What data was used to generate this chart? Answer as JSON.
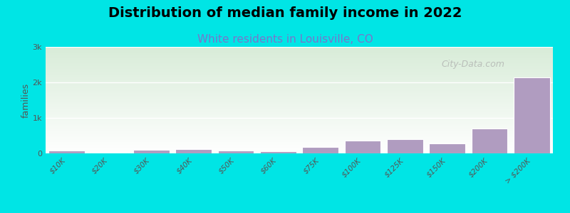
{
  "title": "Distribution of median family income in 2022",
  "subtitle": "White residents in Louisville, CO",
  "xlabel": "",
  "ylabel": "families",
  "categories": [
    "$10K",
    "$20K",
    "$30K",
    "$40K",
    "$50K",
    "$60K",
    "$75K",
    "$100K",
    "$125K",
    "$150K",
    "$200K",
    "> $200K"
  ],
  "values": [
    75,
    20,
    100,
    120,
    80,
    65,
    175,
    360,
    410,
    290,
    700,
    2150
  ],
  "bar_color": "#b09cc0",
  "bar_edge_color": "#ffffff",
  "background_color": "#00e5e5",
  "plot_bg_top_color": "#ffffff",
  "plot_bg_bottom_color": "#d8ecd8",
  "grid_color": "#ffffff",
  "title_color": "#000000",
  "subtitle_color": "#7777cc",
  "ylabel_color": "#555555",
  "ytick_labels": [
    "0",
    "1k",
    "2k",
    "3k"
  ],
  "ytick_values": [
    0,
    1000,
    2000,
    3000
  ],
  "ylim": [
    0,
    3000
  ],
  "watermark": "City-Data.com",
  "title_fontsize": 14,
  "subtitle_fontsize": 11
}
